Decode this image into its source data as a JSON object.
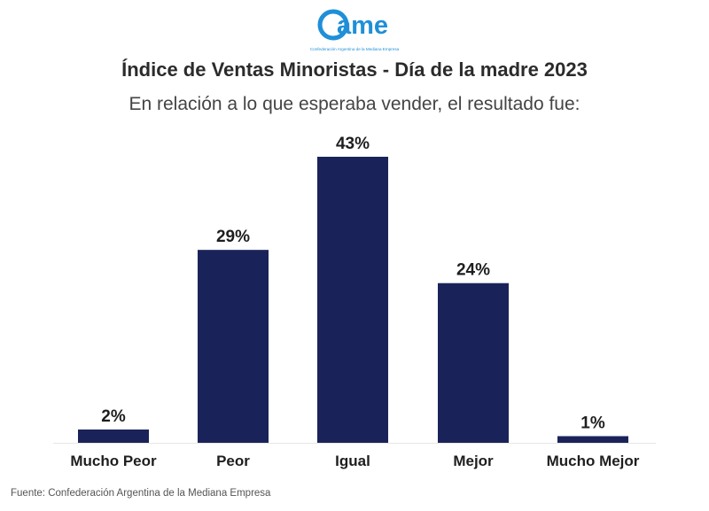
{
  "header": {
    "logo_text": "ame",
    "logo_tagline": "Confederación Argentina de la Mediana Empresa",
    "title": "Índice de Ventas Minoristas - Día de la madre 2023",
    "subtitle": "En relación a lo que esperaba vender, el resultado fue:"
  },
  "footer": {
    "source": "Fuente: Confederación Argentina de la Mediana Empresa"
  },
  "colors": {
    "bar": "#1a2359",
    "logo": "#1f8fd8"
  },
  "chart_data": {
    "type": "bar",
    "categories": [
      "Mucho Peor",
      "Peor",
      "Igual",
      "Mejor",
      "Mucho Mejor"
    ],
    "values": [
      2,
      29,
      43,
      24,
      1
    ],
    "value_labels": [
      "2%",
      "29%",
      "43%",
      "24%",
      "1%"
    ],
    "title": "Índice de Ventas Minoristas - Día de la madre 2023",
    "subtitle": "En relación a lo que esperaba vender, el resultado fue:",
    "xlabel": "",
    "ylabel": "",
    "ylim": [
      0,
      43
    ],
    "grid": false,
    "legend": "none"
  }
}
